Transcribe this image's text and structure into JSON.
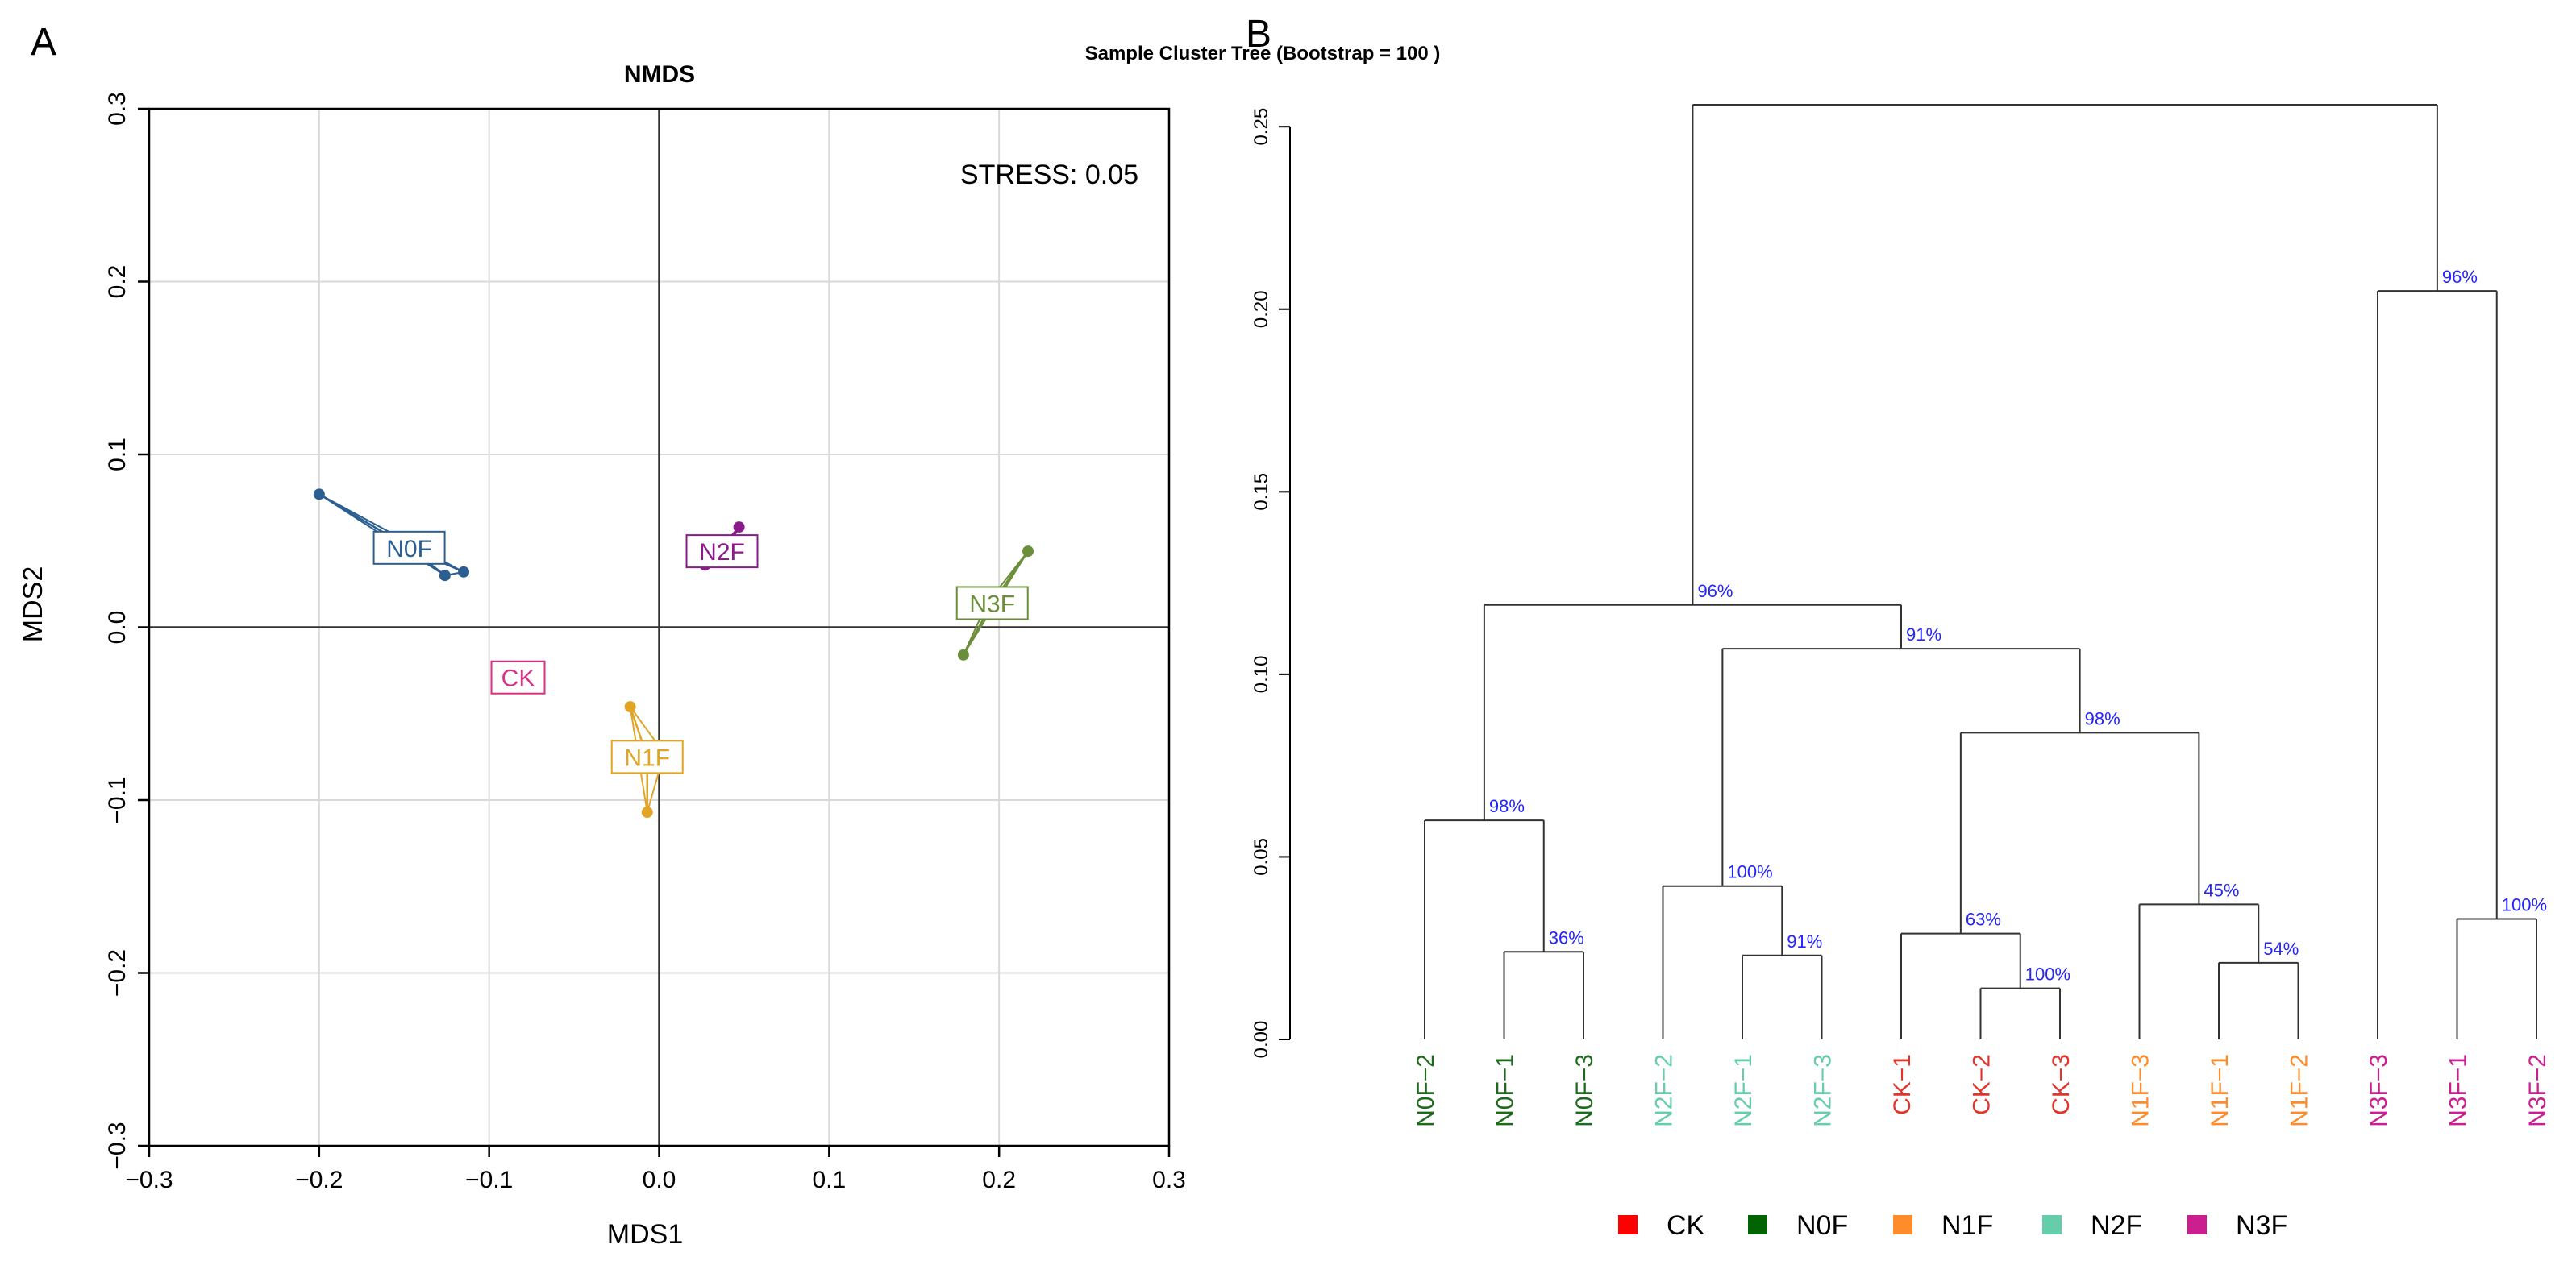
{
  "panels": {
    "a_label": "A",
    "b_label": "B"
  },
  "colors": {
    "CK": "#e6332a",
    "N0F": "#1d6a1d",
    "N1F": "#ff8c2a",
    "N2F": "#66cdaa",
    "N3F": "#cc1f8f",
    "nmds_N0F": "#2c5f91",
    "nmds_N2F": "#8b1a8b",
    "nmds_N3F": "#6b8e3b",
    "nmds_N1F": "#e0a526",
    "nmds_CK": "#d63384",
    "bootstrap": "#2424ff",
    "legend_CK": "#ff0000",
    "legend_N0F": "#006400",
    "legend_N1F": "#ff8c2a",
    "legend_N2F": "#66cdaa",
    "legend_N3F": "#cc1f8f"
  },
  "chart_data": [
    {
      "type": "scatter",
      "title": "NMDS",
      "xlabel": "MDS1",
      "ylabel": "MDS2",
      "xlim": [
        -0.3,
        0.3
      ],
      "ylim": [
        -0.3,
        0.3
      ],
      "xticks": [
        -0.3,
        -0.2,
        -0.1,
        0.0,
        0.1,
        0.2,
        0.3
      ],
      "yticks": [
        -0.3,
        -0.2,
        -0.1,
        0.0,
        0.1,
        0.2,
        0.3
      ],
      "xtick_labels": [
        "−0.3",
        "−0.2",
        "−0.1",
        "0.0",
        "0.1",
        "0.2",
        "0.3"
      ],
      "ytick_labels": [
        "−0.3",
        "−0.2",
        "−0.1",
        "0.0",
        "0.1",
        "0.2",
        "0.3"
      ],
      "grid": true,
      "annotation": "STRESS: 0.05",
      "groups": [
        {
          "name": "N0F",
          "label": "N0F",
          "centroid": [
            -0.147,
            0.046
          ],
          "points": [
            [
              -0.2,
              0.077
            ],
            [
              -0.126,
              0.03
            ],
            [
              -0.115,
              0.032
            ]
          ]
        },
        {
          "name": "N2F",
          "label": "N2F",
          "centroid": [
            0.037,
            0.044
          ],
          "points": [
            [
              0.047,
              0.058
            ],
            [
              0.027,
              0.036
            ],
            [
              0.037,
              0.04
            ]
          ]
        },
        {
          "name": "N3F",
          "label": "N3F",
          "centroid": [
            0.196,
            0.014
          ],
          "points": [
            [
              0.217,
              0.044
            ],
            [
              0.179,
              -0.016
            ],
            [
              0.193,
              0.014
            ]
          ]
        },
        {
          "name": "N1F",
          "label": "N1F",
          "centroid": [
            -0.007,
            -0.075
          ],
          "points": [
            [
              -0.017,
              -0.046
            ],
            [
              -0.007,
              -0.107
            ],
            [
              0.003,
              -0.073
            ]
          ]
        },
        {
          "name": "CK",
          "label": "CK",
          "centroid": [
            -0.083,
            -0.029
          ],
          "points": []
        }
      ]
    },
    {
      "type": "dendrogram",
      "title": "Sample Cluster Tree (Bootstrap = 100 )",
      "ylim": [
        0.0,
        0.25
      ],
      "yticks": [
        0.0,
        0.05,
        0.1,
        0.15,
        0.2,
        0.25
      ],
      "ytick_labels": [
        "0.00",
        "0.05",
        "0.10",
        "0.15",
        "0.20",
        "0.25"
      ],
      "leaves": [
        {
          "name": "N0F−2",
          "group": "N0F"
        },
        {
          "name": "N0F−1",
          "group": "N0F"
        },
        {
          "name": "N0F−3",
          "group": "N0F"
        },
        {
          "name": "N2F−2",
          "group": "N2F"
        },
        {
          "name": "N2F−1",
          "group": "N2F"
        },
        {
          "name": "N2F−3",
          "group": "N2F"
        },
        {
          "name": "CK−1",
          "group": "CK"
        },
        {
          "name": "CK−2",
          "group": "CK"
        },
        {
          "name": "CK−3",
          "group": "CK"
        },
        {
          "name": "N1F−3",
          "group": "N1F"
        },
        {
          "name": "N1F−1",
          "group": "N1F"
        },
        {
          "name": "N1F−2",
          "group": "N1F"
        },
        {
          "name": "N3F−3",
          "group": "N3F"
        },
        {
          "name": "N3F−1",
          "group": "N3F"
        },
        {
          "name": "N3F−2",
          "group": "N3F"
        }
      ],
      "merges": [
        {
          "id": "m1",
          "children": [
            "L1",
            "L2"
          ],
          "height": 0.024,
          "bootstrap": "36%"
        },
        {
          "id": "m2",
          "children": [
            "L0",
            "m1"
          ],
          "height": 0.06,
          "bootstrap": "98%"
        },
        {
          "id": "m3",
          "children": [
            "L4",
            "L5"
          ],
          "height": 0.023,
          "bootstrap": "91%"
        },
        {
          "id": "m4",
          "children": [
            "L3",
            "m3"
          ],
          "height": 0.042,
          "bootstrap": "100%"
        },
        {
          "id": "m5",
          "children": [
            "L7",
            "L8"
          ],
          "height": 0.014,
          "bootstrap": "100%"
        },
        {
          "id": "m6",
          "children": [
            "L6",
            "m5"
          ],
          "height": 0.029,
          "bootstrap": "63%"
        },
        {
          "id": "m7",
          "children": [
            "L10",
            "L11"
          ],
          "height": 0.021,
          "bootstrap": "54%"
        },
        {
          "id": "m8",
          "children": [
            "L9",
            "m7"
          ],
          "height": 0.037,
          "bootstrap": "45%"
        },
        {
          "id": "m9",
          "children": [
            "m6",
            "m8"
          ],
          "height": 0.084,
          "bootstrap": "98%"
        },
        {
          "id": "m10",
          "children": [
            "m4",
            "m9"
          ],
          "height": 0.107,
          "bootstrap": "91%"
        },
        {
          "id": "m11",
          "children": [
            "m2",
            "m10"
          ],
          "height": 0.119,
          "bootstrap": "96%"
        },
        {
          "id": "m12",
          "children": [
            "L13",
            "L14"
          ],
          "height": 0.033,
          "bootstrap": "100%"
        },
        {
          "id": "m13",
          "children": [
            "L12",
            "m12"
          ],
          "height": 0.205,
          "bootstrap": "96%"
        },
        {
          "id": "m14",
          "children": [
            "m11",
            "m13"
          ],
          "height": 0.256,
          "bootstrap": ""
        }
      ],
      "legend": [
        {
          "label": "CK",
          "group": "CK"
        },
        {
          "label": "N0F",
          "group": "N0F"
        },
        {
          "label": "N1F",
          "group": "N1F"
        },
        {
          "label": "N2F",
          "group": "N2F"
        },
        {
          "label": "N3F",
          "group": "N3F"
        }
      ]
    }
  ]
}
